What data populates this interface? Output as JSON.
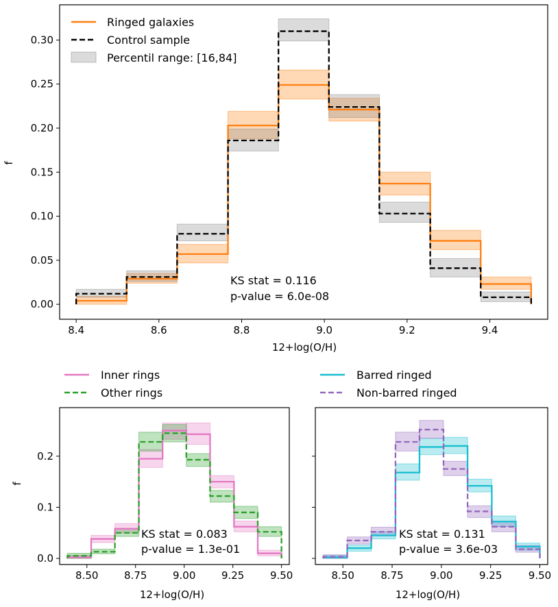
{
  "chart_data": [
    {
      "id": "top",
      "type": "step-histogram",
      "xlabel": "12+log(O/H)",
      "ylabel": "f",
      "xlim": [
        8.36,
        9.54
      ],
      "ylim": [
        -0.017,
        0.34
      ],
      "xticks": [
        8.4,
        8.6,
        8.8,
        9.0,
        9.2,
        9.4
      ],
      "xtick_labels": [
        "8.4",
        "8.6",
        "8.8",
        "9.0",
        "9.2",
        "9.4"
      ],
      "yticks": [
        0.0,
        0.05,
        0.1,
        0.15,
        0.2,
        0.25,
        0.3
      ],
      "ytick_labels": [
        "0.00",
        "0.05",
        "0.10",
        "0.15",
        "0.20",
        "0.25",
        "0.30"
      ],
      "bin_edges": [
        8.4,
        8.522,
        8.644,
        8.767,
        8.889,
        9.011,
        9.133,
        9.256,
        9.378,
        9.5
      ],
      "series": [
        {
          "name": "Ringed galaxies",
          "color": "#ff7f0e",
          "dash": "solid",
          "values": [
            0.004,
            0.029,
            0.057,
            0.203,
            0.249,
            0.221,
            0.137,
            0.072,
            0.023
          ],
          "lower": [
            0.0,
            0.024,
            0.047,
            0.188,
            0.233,
            0.208,
            0.124,
            0.062,
            0.017
          ],
          "upper": [
            0.009,
            0.035,
            0.068,
            0.219,
            0.266,
            0.234,
            0.15,
            0.084,
            0.031
          ]
        },
        {
          "name": "Control sample",
          "color": "#000000",
          "dash": "dashed",
          "band_color": "#888888",
          "values": [
            0.012,
            0.031,
            0.08,
            0.186,
            0.31,
            0.224,
            0.103,
            0.041,
            0.008
          ],
          "lower": [
            0.008,
            0.026,
            0.072,
            0.174,
            0.299,
            0.212,
            0.093,
            0.031,
            0.003
          ],
          "upper": [
            0.017,
            0.038,
            0.091,
            0.199,
            0.324,
            0.238,
            0.116,
            0.052,
            0.014
          ]
        }
      ],
      "legend": {
        "placement": "upper-left",
        "entries": [
          "Ringed galaxies",
          "Control sample",
          "Percentil range: [16,84]"
        ]
      },
      "annotation": [
        "KS stat = 0.116",
        "p-value = 6.0e-08"
      ]
    },
    {
      "id": "bottom-left",
      "type": "step-histogram",
      "xlabel": "12+log(O/H)",
      "ylabel": "f",
      "xlim": [
        8.36,
        9.54
      ],
      "ylim": [
        -0.012,
        0.295
      ],
      "xticks": [
        8.5,
        8.75,
        9.0,
        9.25,
        9.5
      ],
      "xtick_labels": [
        "8.50",
        "8.75",
        "9.00",
        "9.25",
        "9.50"
      ],
      "yticks": [
        0.0,
        0.1,
        0.2
      ],
      "ytick_labels": [
        "0.0",
        "0.1",
        "0.2"
      ],
      "bin_edges": [
        8.4,
        8.522,
        8.644,
        8.767,
        8.889,
        9.011,
        9.133,
        9.256,
        9.378,
        9.5
      ],
      "series": [
        {
          "name": "Inner rings",
          "color": "#e377c2",
          "dash": "solid",
          "values": [
            0.002,
            0.038,
            0.058,
            0.195,
            0.25,
            0.243,
            0.15,
            0.062,
            0.01
          ],
          "lower": [
            0.0,
            0.031,
            0.05,
            0.178,
            0.233,
            0.223,
            0.138,
            0.052,
            0.005
          ],
          "upper": [
            0.006,
            0.045,
            0.068,
            0.213,
            0.265,
            0.265,
            0.162,
            0.073,
            0.016
          ]
        },
        {
          "name": "Other rings",
          "color": "#2ca02c",
          "dash": "dashed",
          "values": [
            0.005,
            0.013,
            0.05,
            0.228,
            0.245,
            0.193,
            0.122,
            0.09,
            0.052
          ],
          "lower": [
            0.0,
            0.009,
            0.043,
            0.21,
            0.228,
            0.18,
            0.11,
            0.078,
            0.043
          ],
          "upper": [
            0.01,
            0.018,
            0.058,
            0.247,
            0.262,
            0.205,
            0.133,
            0.102,
            0.062
          ]
        }
      ],
      "legend": {
        "placement": "above-left",
        "entries": [
          "Inner rings",
          "Other rings"
        ]
      },
      "annotation": [
        "KS stat = 0.083",
        "p-value = 1.3e-01"
      ]
    },
    {
      "id": "bottom-right",
      "type": "step-histogram",
      "xlabel": "12+log(O/H)",
      "ylabel": "",
      "xlim": [
        8.36,
        9.54
      ],
      "ylim": [
        -0.012,
        0.295
      ],
      "xticks": [
        8.5,
        8.75,
        9.0,
        9.25,
        9.5
      ],
      "xtick_labels": [
        "8.50",
        "8.75",
        "9.00",
        "9.25",
        "9.50"
      ],
      "yticks": [
        0.0,
        0.1,
        0.2
      ],
      "ytick_labels": [],
      "bin_edges": [
        8.4,
        8.522,
        8.644,
        8.767,
        8.889,
        9.011,
        9.133,
        9.256,
        9.378,
        9.5
      ],
      "series": [
        {
          "name": "Barred ringed",
          "color": "#17becf",
          "dash": "solid",
          "values": [
            0.002,
            0.02,
            0.045,
            0.168,
            0.218,
            0.22,
            0.142,
            0.072,
            0.023
          ],
          "lower": [
            0.0,
            0.014,
            0.038,
            0.153,
            0.203,
            0.205,
            0.13,
            0.062,
            0.016
          ],
          "upper": [
            0.006,
            0.026,
            0.052,
            0.185,
            0.235,
            0.237,
            0.155,
            0.083,
            0.03
          ]
        },
        {
          "name": "Non-barred ringed",
          "color": "#9467bd",
          "dash": "dashed",
          "values": [
            0.003,
            0.035,
            0.052,
            0.228,
            0.252,
            0.175,
            0.092,
            0.062,
            0.018
          ],
          "lower": [
            0.0,
            0.028,
            0.044,
            0.21,
            0.235,
            0.162,
            0.08,
            0.052,
            0.012
          ],
          "upper": [
            0.007,
            0.042,
            0.061,
            0.247,
            0.27,
            0.19,
            0.103,
            0.073,
            0.025
          ]
        }
      ],
      "legend": {
        "placement": "above-left",
        "entries": [
          "Barred ringed",
          "Non-barred ringed"
        ]
      },
      "annotation": [
        "KS stat = 0.131",
        "p-value = 3.6e-03"
      ]
    }
  ]
}
